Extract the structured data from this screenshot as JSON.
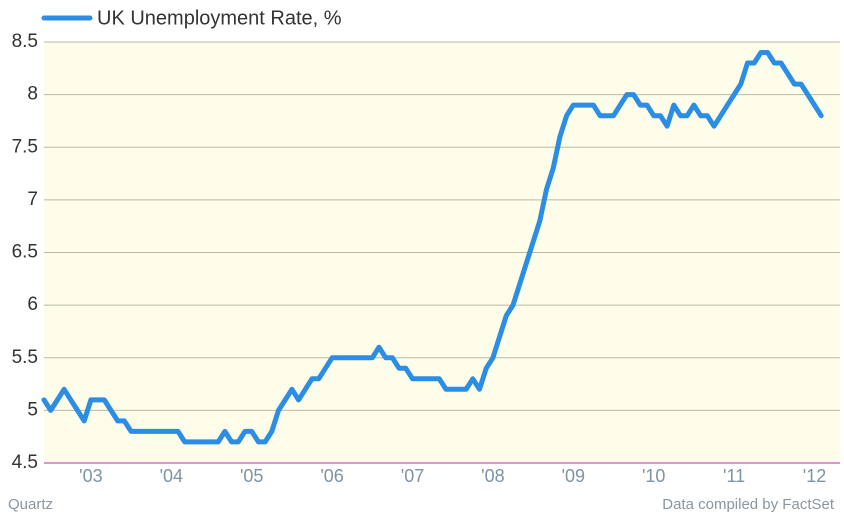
{
  "chart_data": {
    "type": "line",
    "categories": [
      null,
      null,
      null,
      null,
      null,
      null,
      null,
      "'03",
      null,
      null,
      null,
      null,
      null,
      null,
      null,
      null,
      null,
      null,
      null,
      "'04",
      null,
      null,
      null,
      null,
      null,
      null,
      null,
      null,
      null,
      null,
      null,
      "'05",
      null,
      null,
      null,
      null,
      null,
      null,
      null,
      null,
      null,
      null,
      null,
      "'06",
      null,
      null,
      null,
      null,
      null,
      null,
      null,
      null,
      null,
      null,
      null,
      "'07",
      null,
      null,
      null,
      null,
      null,
      null,
      null,
      null,
      null,
      null,
      null,
      "'08",
      null,
      null,
      null,
      null,
      null,
      null,
      null,
      null,
      null,
      null,
      null,
      "'09",
      null,
      null,
      null,
      null,
      null,
      null,
      null,
      null,
      null,
      null,
      null,
      "'10",
      null,
      null,
      null,
      null,
      null,
      null,
      null,
      null,
      null,
      null,
      null,
      "'11",
      null,
      null,
      null,
      null,
      null,
      null,
      null,
      null,
      null,
      null,
      null,
      "'12",
      null
    ],
    "series": [
      {
        "name": "UK Unemployment Rate, %",
        "color": "#2b8de3",
        "values": [
          5.1,
          5.0,
          5.1,
          5.2,
          5.1,
          5.0,
          4.9,
          5.1,
          5.1,
          5.1,
          5.0,
          4.9,
          4.9,
          4.8,
          4.8,
          4.8,
          4.8,
          4.8,
          4.8,
          4.8,
          4.8,
          4.7,
          4.7,
          4.7,
          4.7,
          4.7,
          4.7,
          4.8,
          4.7,
          4.7,
          4.8,
          4.8,
          4.7,
          4.7,
          4.8,
          5.0,
          5.1,
          5.2,
          5.1,
          5.2,
          5.3,
          5.3,
          5.4,
          5.5,
          5.5,
          5.5,
          5.5,
          5.5,
          5.5,
          5.5,
          5.6,
          5.5,
          5.5,
          5.4,
          5.4,
          5.3,
          5.3,
          5.3,
          5.3,
          5.3,
          5.2,
          5.2,
          5.2,
          5.2,
          5.3,
          5.2,
          5.4,
          5.5,
          5.7,
          5.9,
          6.0,
          6.2,
          6.4,
          6.6,
          6.8,
          7.1,
          7.3,
          7.6,
          7.8,
          7.9,
          7.9,
          7.9,
          7.9,
          7.8,
          7.8,
          7.8,
          7.9,
          8.0,
          8.0,
          7.9,
          7.9,
          7.8,
          7.8,
          7.7,
          7.9,
          7.8,
          7.8,
          7.9,
          7.8,
          7.8,
          7.7,
          7.8,
          7.9,
          8.0,
          8.1,
          8.3,
          8.3,
          8.4,
          8.4,
          8.3,
          8.3,
          8.2,
          8.1,
          8.1,
          8.0,
          7.9,
          7.8
        ]
      }
    ],
    "ylim": [
      4.5,
      8.5
    ],
    "yticks": [
      4.5,
      5,
      5.5,
      6,
      6.5,
      7,
      7.5,
      8,
      8.5
    ],
    "grid": true,
    "source_left": "Quartz",
    "source_right": "Data compiled by FactSet"
  }
}
